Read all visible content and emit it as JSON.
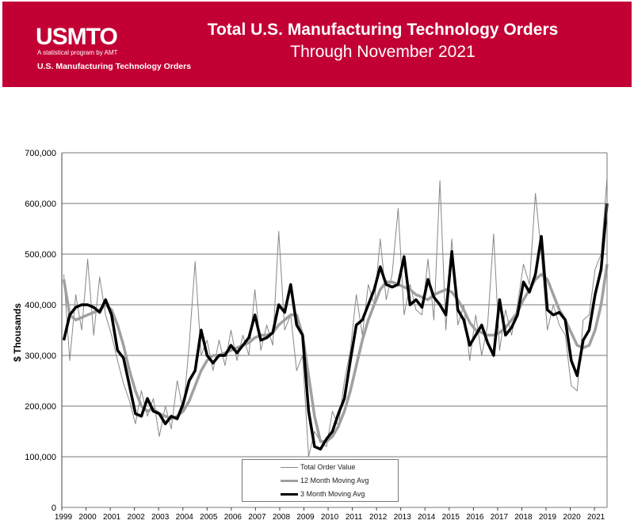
{
  "header": {
    "logo_text": "USMTO",
    "logo_subtitle": "A statistical program by AMT",
    "logo_tagline": "U.S. Manufacturing Technology Orders",
    "title": "Total U.S. Manufacturing Technology Orders",
    "subtitle": "Through November 2021",
    "background_color": "#c20034"
  },
  "chart_data": {
    "type": "line",
    "ylabel": "$ Thousands",
    "xlabel": "",
    "ylim": [
      0,
      700000
    ],
    "yticks": [
      "0",
      "100,000",
      "200,000",
      "300,000",
      "400,000",
      "500,000",
      "600,000",
      "700,000"
    ],
    "xticks": [
      "1999",
      "2000",
      "2001",
      "2002",
      "2003",
      "2004",
      "2005",
      "2006",
      "2007",
      "2008",
      "2009",
      "2010",
      "2011",
      "2012",
      "2013",
      "2014",
      "2015",
      "2016",
      "2017",
      "2018",
      "2019",
      "2020",
      "2021"
    ],
    "x_resolution": "quarterly, Q1 1999 through Nov 2021 (values in $ thousands)",
    "grid": "horizontal",
    "legend_position": "bottom-center",
    "series": [
      {
        "name": "Total Order Value",
        "color": "#888888",
        "values": [
          460,
          290,
          420,
          350,
          490,
          340,
          455,
          380,
          340,
          290,
          245,
          210,
          165,
          230,
          180,
          215,
          140,
          200,
          155,
          250,
          190,
          320,
          485,
          300,
          330,
          270,
          330,
          280,
          350,
          290,
          340,
          300,
          430,
          310,
          360,
          320,
          545,
          350,
          380,
          270,
          300,
          100,
          150,
          130,
          120,
          190,
          160,
          250,
          310,
          420,
          340,
          440,
          400,
          530,
          410,
          460,
          590,
          380,
          440,
          390,
          380,
          490,
          370,
          645,
          350,
          530,
          360,
          400,
          290,
          380,
          300,
          360,
          540,
          310,
          390,
          340,
          400,
          480,
          440,
          620,
          500,
          350,
          400,
          360,
          340,
          240,
          230,
          370,
          380,
          470,
          500,
          650
        ]
      },
      {
        "name": "12 Month Moving Avg",
        "color": "#a0a0a0",
        "values": [
          450,
          380,
          370,
          375,
          380,
          385,
          390,
          400,
          390,
          360,
          320,
          270,
          230,
          200,
          190,
          195,
          185,
          180,
          175,
          180,
          190,
          210,
          240,
          270,
          290,
          300,
          300,
          305,
          310,
          315,
          320,
          325,
          335,
          340,
          340,
          345,
          360,
          370,
          380,
          380,
          340,
          260,
          180,
          130,
          130,
          140,
          160,
          190,
          230,
          280,
          330,
          370,
          400,
          430,
          445,
          445,
          440,
          435,
          430,
          420,
          415,
          410,
          420,
          425,
          430,
          425,
          410,
          390,
          365,
          350,
          345,
          340,
          340,
          345,
          355,
          370,
          385,
          410,
          430,
          450,
          460,
          450,
          420,
          390,
          370,
          345,
          320,
          315,
          320,
          350,
          400,
          480
        ]
      },
      {
        "name": "3 Month Moving Avg",
        "color": "#000000",
        "values": [
          330,
          380,
          395,
          400,
          400,
          395,
          385,
          410,
          380,
          310,
          295,
          240,
          185,
          180,
          215,
          190,
          185,
          165,
          180,
          175,
          205,
          250,
          270,
          350,
          300,
          285,
          300,
          300,
          320,
          305,
          320,
          335,
          380,
          330,
          335,
          345,
          400,
          385,
          440,
          360,
          340,
          190,
          120,
          115,
          135,
          150,
          185,
          215,
          290,
          360,
          370,
          400,
          430,
          475,
          440,
          435,
          440,
          495,
          400,
          410,
          395,
          450,
          415,
          400,
          380,
          505,
          390,
          370,
          320,
          340,
          360,
          325,
          300,
          410,
          340,
          355,
          380,
          445,
          425,
          460,
          535,
          390,
          380,
          385,
          370,
          290,
          260,
          330,
          350,
          420,
          470,
          600
        ]
      }
    ]
  }
}
